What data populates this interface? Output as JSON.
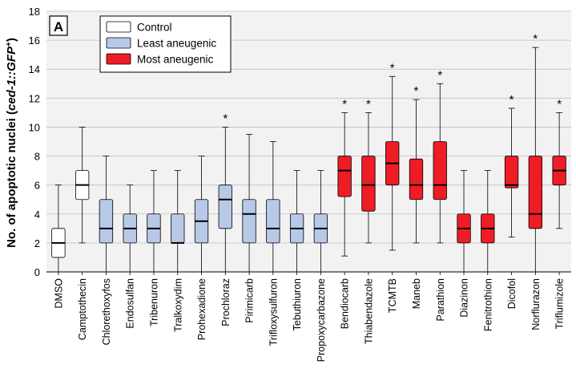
{
  "chart_data": {
    "type": "boxplot",
    "panel_label": "A",
    "ylabel": "No. of apoptotic nuclei (ced-1::GFP+)",
    "ylabel_parts": [
      {
        "text": "No. of apoptotic nuclei (",
        "italic": false
      },
      {
        "text": "ced-1::GFP",
        "italic": true
      },
      {
        "text": "+",
        "italic": false,
        "sup": true
      },
      {
        "text": ")",
        "italic": false
      }
    ],
    "ylim": [
      0,
      18
    ],
    "yticks": [
      0,
      2,
      4,
      6,
      8,
      10,
      12,
      14,
      16,
      18
    ],
    "grid": true,
    "legend_position": "top-left",
    "legend": [
      {
        "label": "Control",
        "group": "control"
      },
      {
        "label": "Least aneugenic",
        "group": "least"
      },
      {
        "label": "Most aneugenic",
        "group": "most"
      }
    ],
    "colors": {
      "control": "#ffffff",
      "least": "#b7c9e6",
      "most": "#ee1c25",
      "grid": "#bfbfbf",
      "plot_bg": "#f2f2f2"
    },
    "significance_marker": "*",
    "categories": [
      {
        "name": "DMSO",
        "group": "control",
        "min": 0,
        "q1": 1,
        "median": 2,
        "q3": 3,
        "max": 6,
        "sig": false
      },
      {
        "name": "Camptothecin",
        "group": "control",
        "min": 2,
        "q1": 5,
        "median": 6,
        "q3": 7,
        "max": 10,
        "sig": false
      },
      {
        "name": "Chlorethoxyfos",
        "group": "least",
        "min": 0,
        "q1": 2,
        "median": 3,
        "q3": 5,
        "max": 8,
        "sig": false
      },
      {
        "name": "Endosulfan",
        "group": "least",
        "min": 0,
        "q1": 2,
        "median": 3,
        "q3": 4,
        "max": 6,
        "sig": false
      },
      {
        "name": "Tribenuron",
        "group": "least",
        "min": 0,
        "q1": 2,
        "median": 3,
        "q3": 4,
        "max": 7,
        "sig": false
      },
      {
        "name": "Tralkoxydim",
        "group": "least",
        "min": 0,
        "q1": 2,
        "median": 2,
        "q3": 4,
        "max": 7,
        "sig": false
      },
      {
        "name": "Prohexadione",
        "group": "least",
        "min": 0,
        "q1": 2,
        "median": 3.5,
        "q3": 5,
        "max": 8,
        "sig": false
      },
      {
        "name": "Prochloraz",
        "group": "least",
        "min": 0,
        "q1": 3,
        "median": 5,
        "q3": 6,
        "max": 10,
        "sig": true
      },
      {
        "name": "Pirimicarb",
        "group": "least",
        "min": 0,
        "q1": 2,
        "median": 4,
        "q3": 5,
        "max": 9.5,
        "sig": false
      },
      {
        "name": "Trifloxysulfuron",
        "group": "least",
        "min": 0,
        "q1": 2,
        "median": 3,
        "q3": 5,
        "max": 9,
        "sig": false
      },
      {
        "name": "Tebuthiuron",
        "group": "least",
        "min": 0,
        "q1": 2,
        "median": 3,
        "q3": 4,
        "max": 7,
        "sig": false
      },
      {
        "name": "Propoxycarbazone",
        "group": "least",
        "min": 0,
        "q1": 2,
        "median": 3,
        "q3": 4,
        "max": 7,
        "sig": false
      },
      {
        "name": "Bendiocarb",
        "group": "most",
        "min": 1.1,
        "q1": 5.2,
        "median": 7,
        "q3": 8,
        "max": 11,
        "sig": true
      },
      {
        "name": "Thiabendazole",
        "group": "most",
        "min": 2,
        "q1": 4.2,
        "median": 6,
        "q3": 8,
        "max": 11,
        "sig": true
      },
      {
        "name": "TCMTB",
        "group": "most",
        "min": 1.5,
        "q1": 6,
        "median": 7.5,
        "q3": 9,
        "max": 13.5,
        "sig": true
      },
      {
        "name": "Maneb",
        "group": "most",
        "min": 2,
        "q1": 5,
        "median": 6,
        "q3": 7.8,
        "max": 11.9,
        "sig": true
      },
      {
        "name": "Parathion",
        "group": "most",
        "min": 2,
        "q1": 5,
        "median": 6,
        "q3": 9,
        "max": 13,
        "sig": true
      },
      {
        "name": "Diazinon",
        "group": "most",
        "min": 0,
        "q1": 2,
        "median": 3,
        "q3": 4,
        "max": 7,
        "sig": false
      },
      {
        "name": "Fenitrothion",
        "group": "most",
        "min": 0,
        "q1": 2,
        "median": 3,
        "q3": 4,
        "max": 7,
        "sig": false
      },
      {
        "name": "Dicofol",
        "group": "most",
        "min": 2.4,
        "q1": 5.8,
        "median": 6,
        "q3": 8,
        "max": 11.3,
        "sig": true
      },
      {
        "name": "Norflurazon",
        "group": "most",
        "min": 0,
        "q1": 3,
        "median": 4,
        "q3": 8,
        "max": 15.5,
        "sig": true
      },
      {
        "name": "Triflumizole",
        "group": "most",
        "min": 3,
        "q1": 6,
        "median": 7,
        "q3": 8,
        "max": 11,
        "sig": true
      }
    ]
  }
}
